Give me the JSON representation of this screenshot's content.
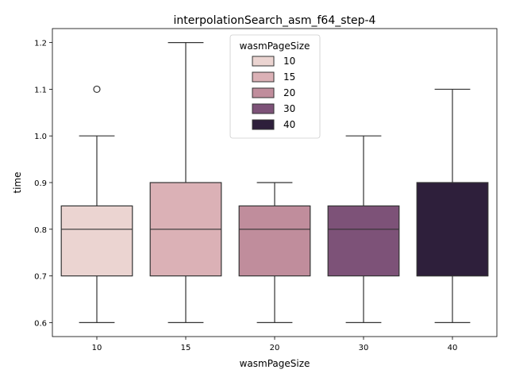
{
  "chart_data": {
    "type": "box",
    "title": "interpolationSearch_asm_f64_step-4",
    "xlabel": "wasmPageSize",
    "ylabel": "time",
    "categories": [
      "10",
      "15",
      "20",
      "30",
      "40"
    ],
    "ylim": [
      0.57,
      1.23
    ],
    "yticks": [
      0.6,
      0.7,
      0.8,
      0.9,
      1.0,
      1.1,
      1.2
    ],
    "ytick_labels": [
      "0.6",
      "0.7",
      "0.8",
      "0.9",
      "1.0",
      "1.1",
      "1.2"
    ],
    "grid": false,
    "boxes": [
      {
        "category": "10",
        "whisker_low": 0.6,
        "q1": 0.7,
        "median": 0.8,
        "q3": 0.85,
        "whisker_high": 1.0,
        "outliers": [
          1.1
        ],
        "color": "#ebd4d1"
      },
      {
        "category": "15",
        "whisker_low": 0.6,
        "q1": 0.7,
        "median": 0.8,
        "q3": 0.9,
        "whisker_high": 1.2,
        "outliers": [],
        "color": "#dbb1b6"
      },
      {
        "category": "20",
        "whisker_low": 0.6,
        "q1": 0.7,
        "median": 0.8,
        "q3": 0.85,
        "whisker_high": 0.9,
        "outliers": [],
        "color": "#c08d9c"
      },
      {
        "category": "30",
        "whisker_low": 0.6,
        "q1": 0.7,
        "median": 0.8,
        "q3": 0.85,
        "whisker_high": 1.0,
        "outliers": [],
        "color": "#7d5278"
      },
      {
        "category": "40",
        "whisker_low": 0.6,
        "q1": 0.7,
        "median": 0.7,
        "q3": 0.9,
        "whisker_high": 1.1,
        "outliers": [],
        "color": "#2e1f3b"
      }
    ],
    "legend": {
      "title": "wasmPageSize",
      "placement": "upper-center",
      "entries": [
        {
          "label": "10",
          "color": "#ebd4d1"
        },
        {
          "label": "15",
          "color": "#dbb1b6"
        },
        {
          "label": "20",
          "color": "#c08d9c"
        },
        {
          "label": "30",
          "color": "#7d5278"
        },
        {
          "label": "40",
          "color": "#2e1f3b"
        }
      ]
    }
  }
}
